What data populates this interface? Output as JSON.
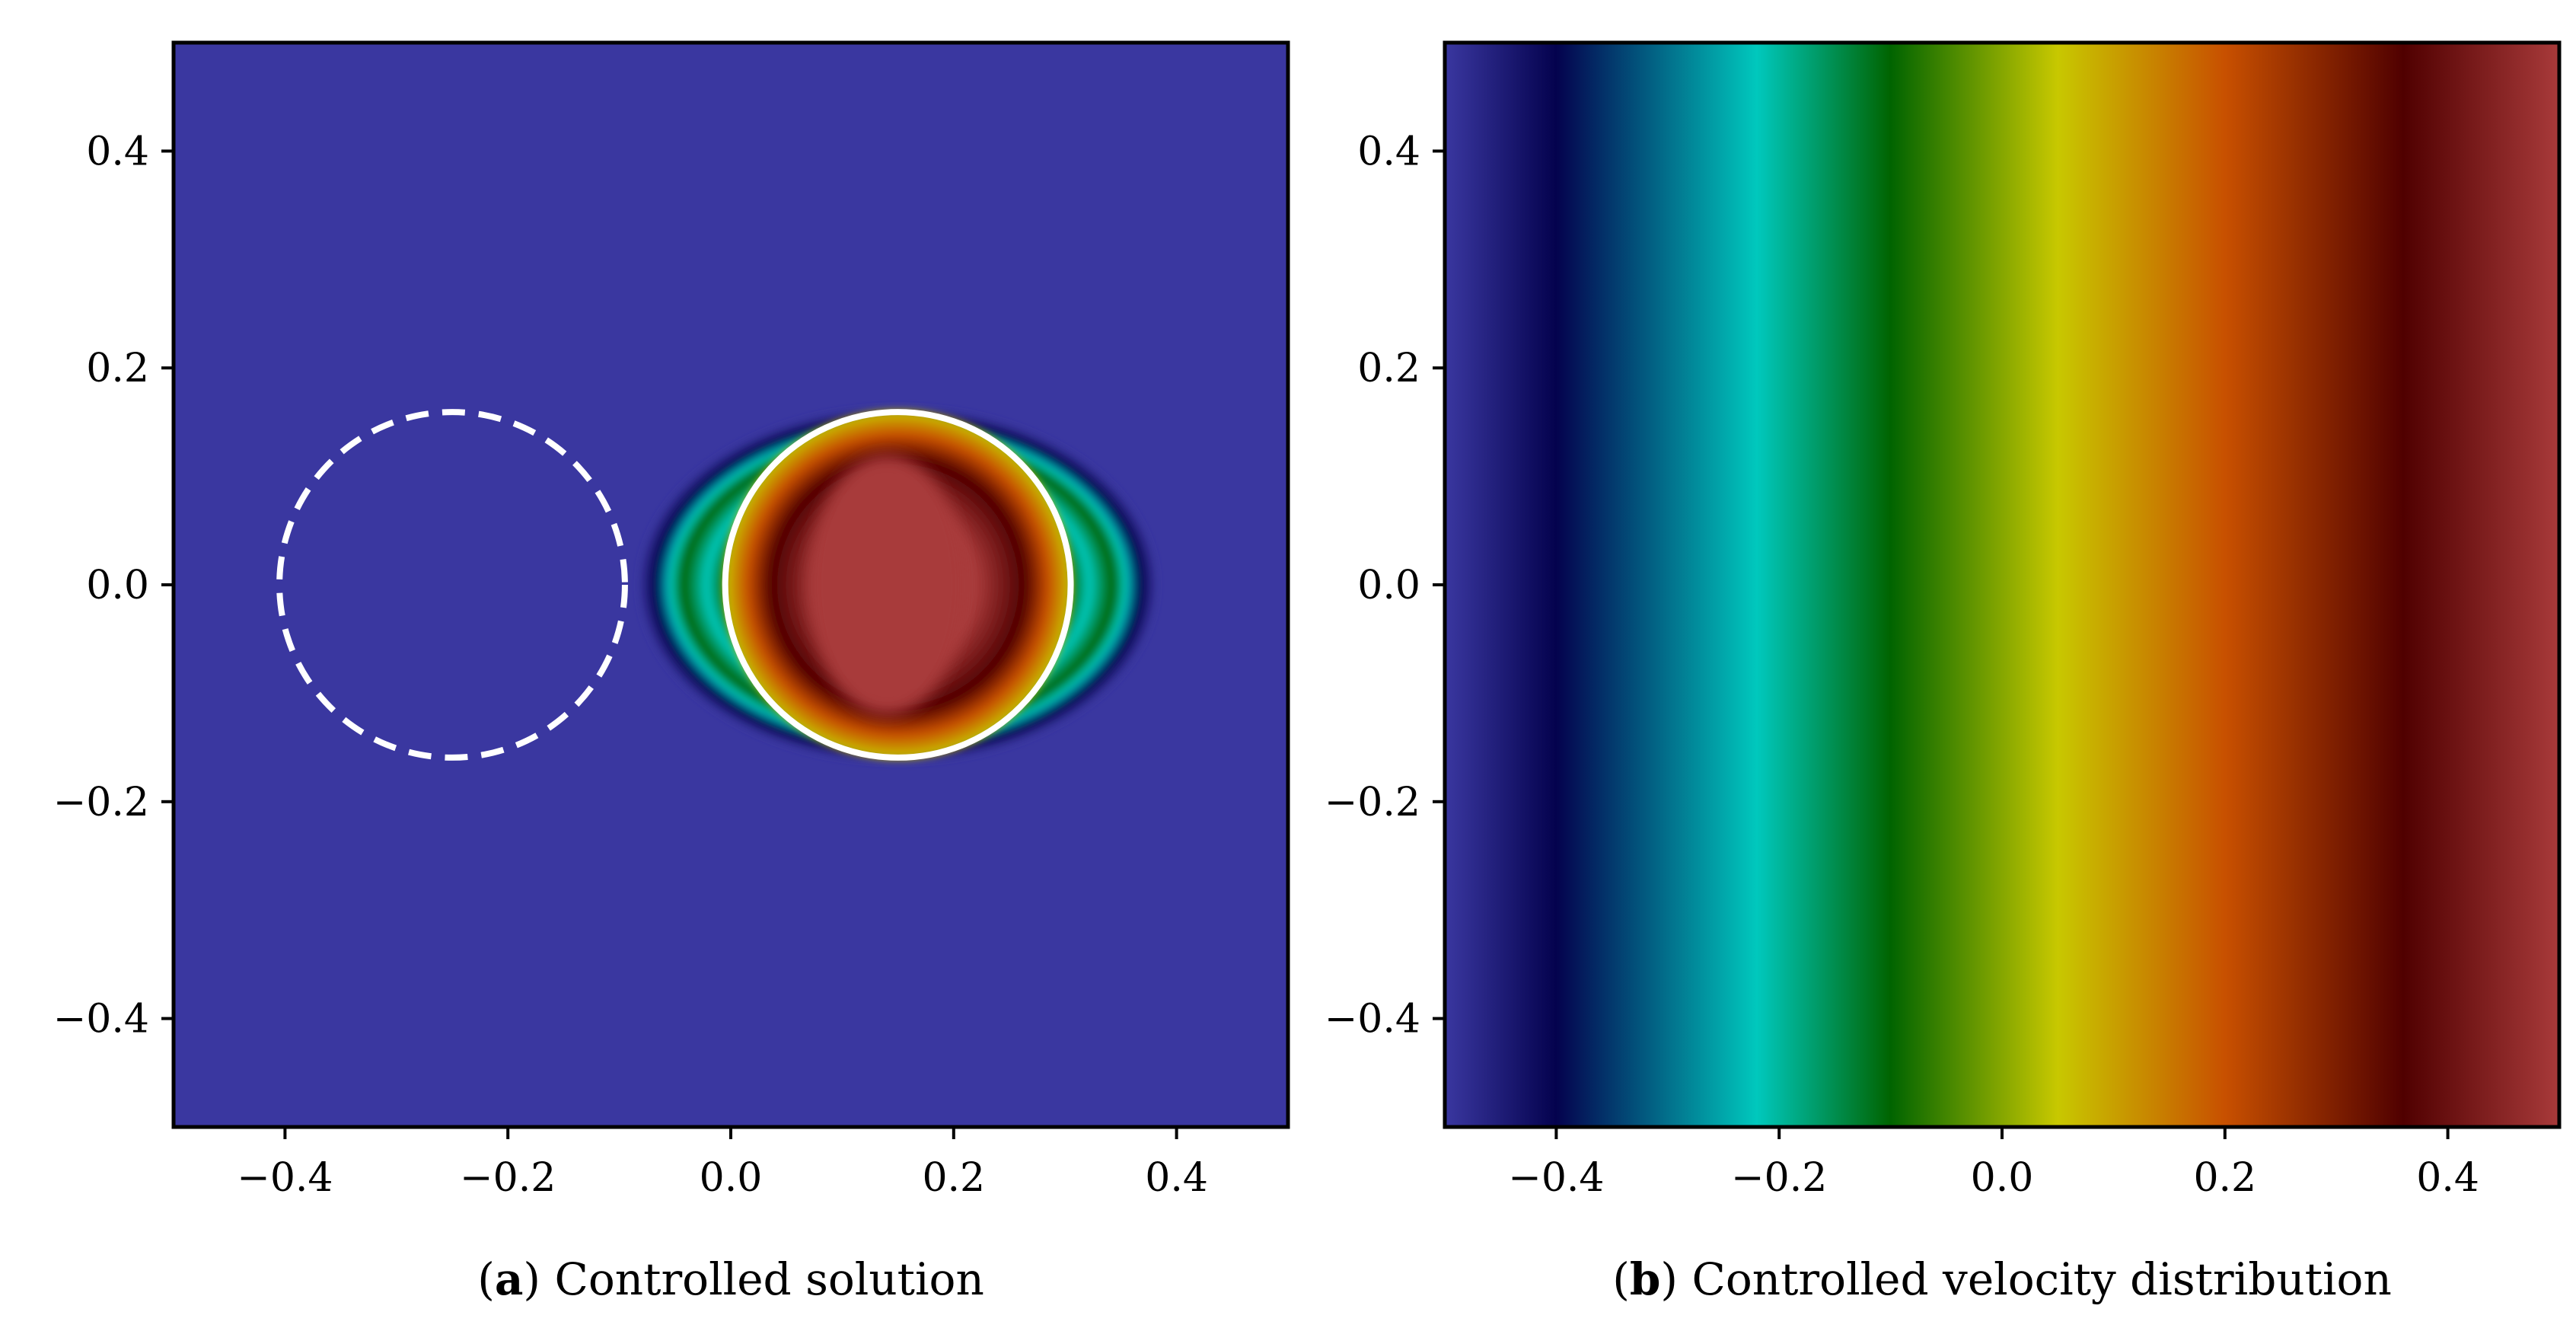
{
  "colors": {
    "background_field": "#3a37a0",
    "contour_line": "#ffffff",
    "frame": "#000000",
    "colormap_stops": [
      "#3a37a0",
      "#04024e",
      "#00c8bd",
      "#006400",
      "#c8c800",
      "#c85000",
      "#500000",
      "#a83a3a"
    ]
  },
  "chart_data": [
    {
      "id": "a",
      "type": "heatmap",
      "title": "",
      "caption_prefix": "a",
      "caption_text": "Controlled solution",
      "xlim": [
        -0.5,
        0.5
      ],
      "ylim": [
        -0.5,
        0.5
      ],
      "xticks": [
        -0.4,
        -0.2,
        0.0,
        0.2,
        0.4
      ],
      "yticks": [
        -0.4,
        -0.2,
        0.0,
        0.2,
        0.4
      ],
      "xtick_labels": [
        "−0.4",
        "−0.2",
        "0.0",
        "0.2",
        "0.4"
      ],
      "ytick_labels": [
        "−0.4",
        "−0.2",
        "0.0",
        "0.2",
        "0.4"
      ],
      "field": {
        "blob_center": [
          0.15,
          0.0
        ],
        "blob_radius": 0.16,
        "inner_core_center": [
          0.14,
          0.0
        ],
        "inner_core_semi_axes": [
          0.07,
          0.12
        ]
      },
      "circles": [
        {
          "name": "initial",
          "center": [
            -0.25,
            0.0
          ],
          "radius": 0.155,
          "style": "dashed"
        },
        {
          "name": "target",
          "center": [
            0.15,
            0.0
          ],
          "radius": 0.155,
          "style": "solid"
        }
      ],
      "xlabel": "",
      "ylabel": ""
    },
    {
      "id": "b",
      "type": "heatmap",
      "title": "",
      "caption_prefix": "b",
      "caption_text": "Controlled velocity distribution",
      "xlim": [
        -0.5,
        0.5
      ],
      "ylim": [
        -0.5,
        0.5
      ],
      "xticks": [
        -0.4,
        -0.2,
        0.0,
        0.2,
        0.4
      ],
      "yticks": [
        -0.4,
        -0.2,
        0.0,
        0.2,
        0.4
      ],
      "xtick_labels": [
        "−0.4",
        "−0.2",
        "0.0",
        "0.2",
        "0.4"
      ],
      "ytick_labels": [
        "−0.4",
        "−0.2",
        "0.0",
        "0.2",
        "0.4"
      ],
      "gradient": [
        {
          "x": -0.5,
          "color": "#3a37a0"
        },
        {
          "x": -0.4,
          "color": "#04024e"
        },
        {
          "x": -0.22,
          "color": "#00c8bd"
        },
        {
          "x": -0.1,
          "color": "#006400"
        },
        {
          "x": 0.05,
          "color": "#c8c800"
        },
        {
          "x": 0.2,
          "color": "#c85000"
        },
        {
          "x": 0.36,
          "color": "#500000"
        },
        {
          "x": 0.5,
          "color": "#a83a3a"
        }
      ],
      "xlabel": "",
      "ylabel": ""
    }
  ]
}
